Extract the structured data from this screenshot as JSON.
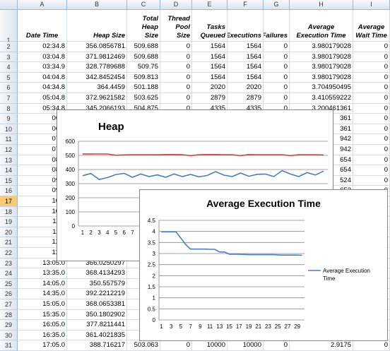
{
  "columns": [
    "A",
    "B",
    "C",
    "D",
    "E",
    "F",
    "G",
    "H",
    "I"
  ],
  "header_row": {
    "row": "1",
    "cells": [
      "Date Time",
      "Heap Size",
      "Total Heap Size",
      "Thread Pool Size",
      "Tasks Queued",
      "Executions",
      "Failures",
      "Average Execution Time",
      "Average Wait Time"
    ]
  },
  "rows": [
    {
      "n": "2",
      "c": [
        "02:34.8",
        "356.0856781",
        "509.688",
        "0",
        "1564",
        "1564",
        "0",
        "3.980179028",
        "0"
      ]
    },
    {
      "n": "3",
      "c": [
        "03:04.8",
        "371.9812469",
        "509.688",
        "0",
        "1564",
        "1564",
        "0",
        "3.980179028",
        "0"
      ]
    },
    {
      "n": "4",
      "c": [
        "03:34.9",
        "328.7789688",
        "509.75",
        "0",
        "1564",
        "1564",
        "0",
        "3.980179028",
        "0"
      ]
    },
    {
      "n": "5",
      "c": [
        "04:04.8",
        "342.8452454",
        "509.813",
        "0",
        "1564",
        "1564",
        "0",
        "3.980179028",
        "0"
      ]
    },
    {
      "n": "6",
      "c": [
        "04:34.8",
        "364.4459",
        "501.188",
        "0",
        "2020",
        "2020",
        "0",
        "3.704950495",
        "0"
      ]
    },
    {
      "n": "7",
      "c": [
        "05:04.8",
        "372.9621582",
        "503.625",
        "0",
        "2879",
        "2879",
        "0",
        "3.410559222",
        "0"
      ]
    },
    {
      "n": "8",
      "c": [
        "05:34.8",
        "345.2066193",
        "504.875",
        "0",
        "4335",
        "4335",
        "0",
        "3.200461361",
        "0"
      ]
    },
    {
      "n": "9",
      "c": [
        "06:0",
        "",
        "",
        "",
        "",
        "",
        "",
        "361",
        "0"
      ]
    },
    {
      "n": "10",
      "c": [
        "06:3",
        "",
        "",
        "",
        "",
        "",
        "",
        "361",
        "0"
      ]
    },
    {
      "n": "11",
      "c": [
        "07:0",
        "",
        "",
        "",
        "",
        "",
        "",
        "942",
        "0"
      ]
    },
    {
      "n": "12",
      "c": [
        "07:3",
        "",
        "",
        "",
        "",
        "",
        "",
        "942",
        "0"
      ]
    },
    {
      "n": "13",
      "c": [
        "08:0",
        "",
        "",
        "",
        "",
        "",
        "",
        "654",
        "0"
      ]
    },
    {
      "n": "14",
      "c": [
        "08:3",
        "",
        "",
        "",
        "",
        "",
        "",
        "654",
        "0"
      ]
    },
    {
      "n": "15",
      "c": [
        "09:0",
        "",
        "",
        "",
        "",
        "",
        "",
        "524",
        "0"
      ]
    },
    {
      "n": "16",
      "c": [
        "09:3",
        "",
        "",
        "",
        "",
        "",
        "",
        "653",
        "0"
      ]
    },
    {
      "n": "17",
      "c": [
        "10:0",
        "",
        "",
        "",
        "",
        "",
        "",
        "",
        "0"
      ]
    },
    {
      "n": "18",
      "c": [
        "10:3",
        "",
        "",
        "",
        "",
        "",
        "",
        "",
        "0"
      ]
    },
    {
      "n": "19",
      "c": [
        "11:0",
        "",
        "",
        "",
        "",
        "",
        "",
        "",
        "0"
      ]
    },
    {
      "n": "20",
      "c": [
        "11:3",
        "",
        "",
        "",
        "",
        "",
        "",
        "",
        "0"
      ]
    },
    {
      "n": "21",
      "c": [
        "12:0",
        "",
        "",
        "",
        "",
        "",
        "",
        "",
        "0"
      ]
    },
    {
      "n": "22",
      "c": [
        "12:3",
        "",
        "",
        "",
        "",
        "",
        "",
        "",
        "0"
      ]
    },
    {
      "n": "23",
      "c": [
        "13:05.0",
        "366.0250297",
        "",
        "",
        "",
        "",
        "",
        "",
        "0"
      ]
    },
    {
      "n": "24",
      "c": [
        "13:35.0",
        "368.4134293",
        "50",
        "",
        "",
        "",
        "",
        "",
        "0"
      ]
    },
    {
      "n": "25",
      "c": [
        "14:05.0",
        "350.557579",
        "",
        "",
        "",
        "",
        "",
        "",
        "0"
      ]
    },
    {
      "n": "26",
      "c": [
        "14:35.0",
        "392.2212219",
        "50",
        "",
        "",
        "",
        "",
        "",
        "0"
      ]
    },
    {
      "n": "27",
      "c": [
        "15:05.0",
        "368.0653381",
        "49",
        "",
        "",
        "",
        "",
        "",
        "0"
      ]
    },
    {
      "n": "28",
      "c": [
        "15:35.0",
        "350.1802902",
        "",
        "",
        "",
        "",
        "",
        "",
        "0"
      ]
    },
    {
      "n": "29",
      "c": [
        "16:05.0",
        "377.8211441",
        "50",
        "",
        "",
        "",
        "",
        "",
        "0"
      ]
    },
    {
      "n": "30",
      "c": [
        "16:35.0",
        "361.4021835",
        "50",
        "",
        "",
        "",
        "",
        "",
        "0"
      ]
    },
    {
      "n": "31",
      "c": [
        "17:05.0",
        "388.716217",
        "503.063",
        "0",
        "10000",
        "10000",
        "0",
        "2.9175",
        "0"
      ]
    }
  ],
  "selected_row": "17",
  "colors": {
    "heap_series": "#4a7ebb",
    "total_heap_series": "#be4b48",
    "avg_exec_series": "#4a7ebb",
    "gridline": "#868686"
  },
  "chart_data": [
    {
      "type": "line",
      "title": "Heap",
      "ylim": [
        0,
        600
      ],
      "yticks": [
        "0",
        "100",
        "200",
        "300",
        "400",
        "500",
        "600"
      ],
      "xticks": [
        "1",
        "2",
        "3",
        "4",
        "5",
        "6",
        "7",
        "8"
      ],
      "x": [
        1,
        2,
        3,
        4,
        5,
        6,
        7,
        8,
        9,
        10,
        11,
        12,
        13,
        14,
        15,
        16,
        17,
        18,
        19,
        20,
        21,
        22,
        23,
        24,
        25,
        26,
        27,
        28,
        29,
        30
      ],
      "series": [
        {
          "values": [
            356.1,
            372.0,
            328.8,
            342.8,
            364.4,
            373.0,
            345.2,
            368,
            350,
            362,
            345,
            368,
            350,
            365,
            348,
            358,
            385,
            360,
            350,
            375,
            352,
            366,
            368,
            350,
            392,
            368,
            350,
            378,
            361,
            389
          ]
        },
        {
          "values": [
            509.7,
            509.7,
            509.8,
            509.8,
            501.2,
            503.6,
            504.9,
            505,
            505,
            504,
            506,
            506,
            505,
            498,
            505,
            506,
            506,
            505,
            505,
            498,
            506,
            505,
            505,
            505,
            505,
            498,
            505,
            505,
            505,
            503.1
          ]
        }
      ],
      "grid": true
    },
    {
      "type": "line",
      "title": "Average Execution Time",
      "ylim": [
        0,
        4.5
      ],
      "yticks": [
        "0",
        "0.5",
        "1",
        "1.5",
        "2",
        "2.5",
        "3",
        "3.5",
        "4",
        "4.5"
      ],
      "xticks": [
        "1",
        "3",
        "5",
        "7",
        "9",
        "11",
        "13",
        "15",
        "17",
        "19",
        "21",
        "23",
        "25",
        "27",
        "29"
      ],
      "x": [
        1,
        2,
        3,
        4,
        5,
        6,
        7,
        8,
        9,
        10,
        11,
        12,
        13,
        14,
        15,
        16,
        17,
        18,
        19,
        20,
        21,
        22,
        23,
        24,
        25,
        26,
        27,
        28,
        29,
        30
      ],
      "series": [
        {
          "name": "Average Execution Time",
          "values": [
            3.98,
            3.98,
            3.98,
            3.98,
            3.7,
            3.41,
            3.2,
            3.2,
            3.2,
            3.2,
            3.19,
            3.19,
            3.07,
            3.07,
            2.97,
            2.97,
            2.97,
            2.96,
            2.95,
            2.95,
            2.95,
            2.95,
            2.95,
            2.95,
            2.94,
            2.93,
            2.93,
            2.93,
            2.93,
            2.92
          ]
        }
      ],
      "legend": "right",
      "grid": true
    }
  ]
}
